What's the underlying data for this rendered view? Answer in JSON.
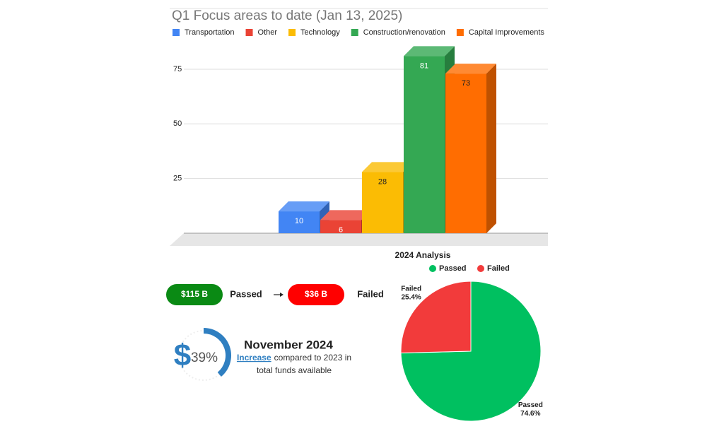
{
  "chart_data": [
    {
      "type": "bar",
      "title": "Q1 Focus areas to date (Jan 13, 2025)",
      "series": [
        {
          "name": "Transportation",
          "color": "#4285f4",
          "values": [
            10
          ]
        },
        {
          "name": "Other",
          "color": "#ea4335",
          "values": [
            6
          ]
        },
        {
          "name": "Technology",
          "color": "#fbbc04",
          "values": [
            28
          ]
        },
        {
          "name": "Construction/renovation",
          "color": "#34a853",
          "values": [
            81
          ]
        },
        {
          "name": "Capital Improvements",
          "color": "#ff6d01",
          "values": [
            73
          ]
        }
      ],
      "ylim": [
        0,
        85
      ],
      "yticks": [
        25,
        50,
        75
      ],
      "grid": true,
      "legend": "top"
    },
    {
      "type": "pie",
      "title": "2024 Analysis",
      "categories": [
        "Passed",
        "Failed"
      ],
      "values": [
        74.6,
        25.4
      ],
      "value_labels": [
        "74.6%",
        "25.4%"
      ],
      "colors": [
        "#00c060",
        "#f23b3b"
      ],
      "legend": "top"
    },
    {
      "type": "gauge",
      "value": 39,
      "value_label": "39%",
      "color": "#2f7fc1"
    }
  ],
  "summary": {
    "passed_amount": "$115 B",
    "passed_label": "Passed",
    "failed_amount": "$36 B",
    "failed_label": "Failed",
    "currency": "$",
    "heading": "November 2024",
    "highlight": "Increase",
    "text_1": "compared to 2023 in",
    "text_2": "total funds available"
  }
}
